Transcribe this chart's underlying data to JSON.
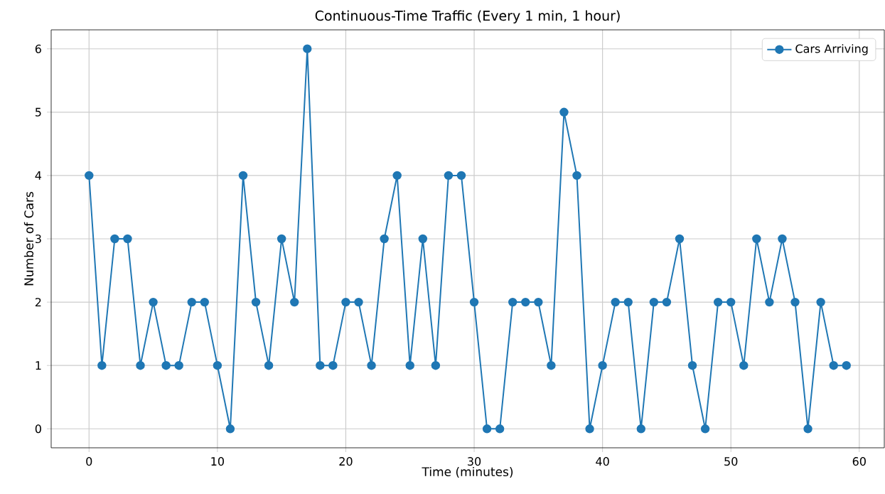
{
  "chart_data": {
    "type": "line",
    "title": "Continuous-Time Traffic (Every 1 min, 1 hour)",
    "xlabel": "Time (minutes)",
    "ylabel": "Number of Cars",
    "x": [
      0,
      1,
      2,
      3,
      4,
      5,
      6,
      7,
      8,
      9,
      10,
      11,
      12,
      13,
      14,
      15,
      16,
      17,
      18,
      19,
      20,
      21,
      22,
      23,
      24,
      25,
      26,
      27,
      28,
      29,
      30,
      31,
      32,
      33,
      34,
      35,
      36,
      37,
      38,
      39,
      40,
      41,
      42,
      43,
      44,
      45,
      46,
      47,
      48,
      49,
      50,
      51,
      52,
      53,
      54,
      55,
      56,
      57,
      58,
      59
    ],
    "series": [
      {
        "name": "Cars Arriving",
        "color": "#1f77b4",
        "values": [
          4,
          1,
          3,
          3,
          1,
          2,
          1,
          1,
          2,
          2,
          1,
          0,
          4,
          2,
          1,
          3,
          2,
          6,
          1,
          1,
          2,
          2,
          1,
          3,
          4,
          1,
          3,
          1,
          4,
          4,
          2,
          0,
          0,
          2,
          2,
          2,
          1,
          5,
          4,
          0,
          1,
          2,
          2,
          0,
          2,
          2,
          3,
          1,
          0,
          2,
          2,
          1,
          3,
          2,
          3,
          2,
          0,
          2,
          1,
          1
        ]
      }
    ],
    "xlim": [
      -2.95,
      61.95
    ],
    "ylim": [
      -0.3,
      6.3
    ],
    "xticks": [
      0,
      10,
      20,
      30,
      40,
      50,
      60
    ],
    "yticks": [
      0,
      1,
      2,
      3,
      4,
      5,
      6
    ],
    "grid": true,
    "legend": "top right",
    "marker": "circle",
    "line_style": "solid"
  }
}
